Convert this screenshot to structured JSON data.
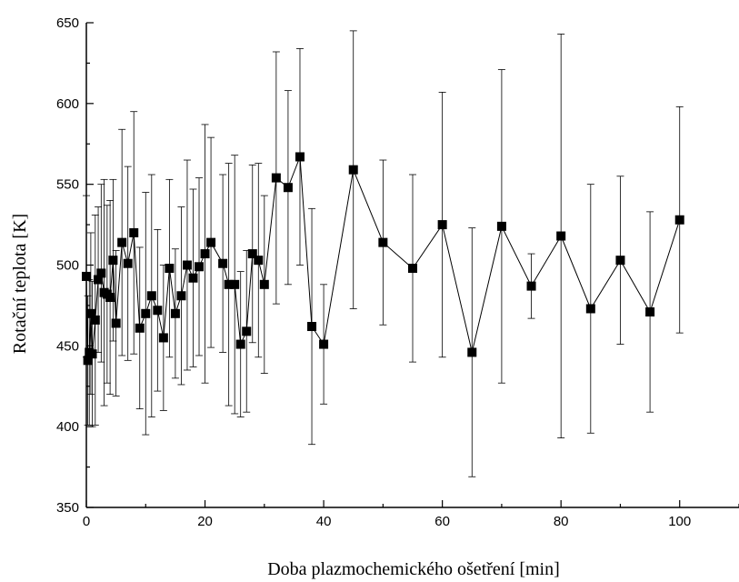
{
  "chart_data": {
    "type": "scatter",
    "title": "",
    "xlabel": "Doba plazmochemického ošetření [min]",
    "ylabel": "Rotační teplota [K]",
    "xlim": [
      0,
      110
    ],
    "ylim": [
      350,
      650
    ],
    "xticks": [
      0,
      20,
      40,
      60,
      80,
      100
    ],
    "yticks": [
      350,
      400,
      450,
      500,
      550,
      600,
      650
    ],
    "grid": false,
    "legend": "none",
    "marker": "filled-square",
    "connected": true,
    "color": "#000000",
    "series": [
      {
        "x": [
          0,
          0.25,
          0.5,
          0.75,
          1,
          1.5,
          2,
          2.5,
          3,
          3.5,
          4,
          4.5,
          5,
          6,
          7,
          8,
          9,
          10,
          11,
          12,
          13,
          14,
          15,
          16,
          17,
          18,
          19,
          20,
          21,
          23,
          24,
          25,
          26,
          27,
          28,
          29,
          30,
          32,
          34,
          36,
          38,
          40,
          45,
          50,
          55,
          60,
          65,
          70,
          75,
          80,
          85,
          90,
          95,
          100
        ],
        "y": [
          493,
          441,
          446,
          470,
          445,
          466,
          491,
          495,
          483,
          482,
          480,
          503,
          464,
          514,
          501,
          520,
          461,
          470,
          481,
          472,
          455,
          498,
          470,
          481,
          500,
          492,
          499,
          507,
          514,
          501,
          488,
          488,
          451,
          459,
          507,
          503,
          488,
          554,
          548,
          567,
          462,
          451,
          559,
          514,
          498,
          525,
          446,
          524,
          487,
          518,
          473,
          503,
          471,
          528
        ],
        "err": [
          50,
          40,
          45,
          50,
          45,
          65,
          45,
          55,
          70,
          55,
          60,
          50,
          45,
          70,
          60,
          75,
          50,
          75,
          75,
          50,
          45,
          55,
          40,
          55,
          65,
          55,
          55,
          80,
          65,
          55,
          75,
          80,
          45,
          50,
          55,
          60,
          55,
          78,
          60,
          67,
          73,
          37,
          86,
          51,
          58,
          82,
          77,
          97,
          20,
          125,
          77,
          52,
          62,
          70
        ]
      }
    ]
  }
}
